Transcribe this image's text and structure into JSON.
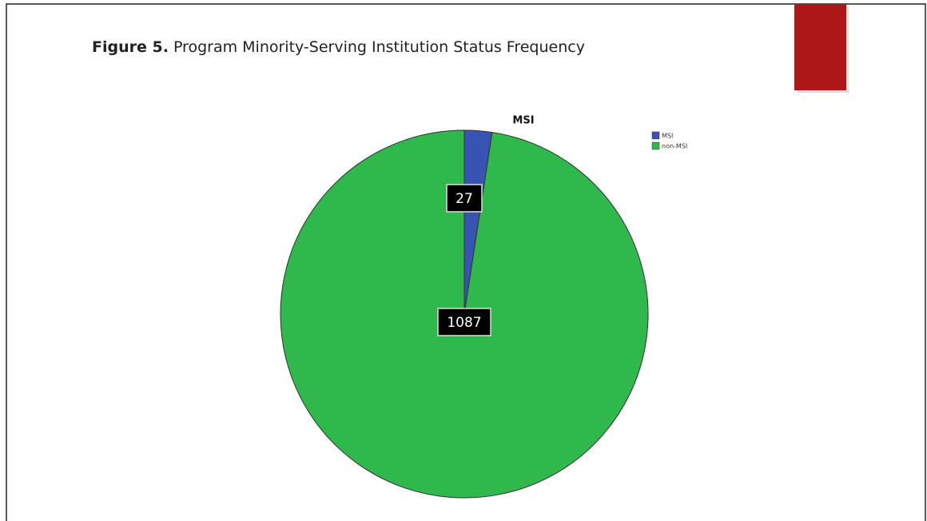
{
  "figure_label": "Figure 5.",
  "chart_data": {
    "type": "pie",
    "caption": "Program Minority-Serving Institution Status Frequency",
    "title": "MSI",
    "categories": [
      "MSI",
      "non-MSI"
    ],
    "values": [
      27,
      1087
    ],
    "colors": [
      "#3953b3",
      "#2fb84b"
    ],
    "legend": "top-right"
  }
}
